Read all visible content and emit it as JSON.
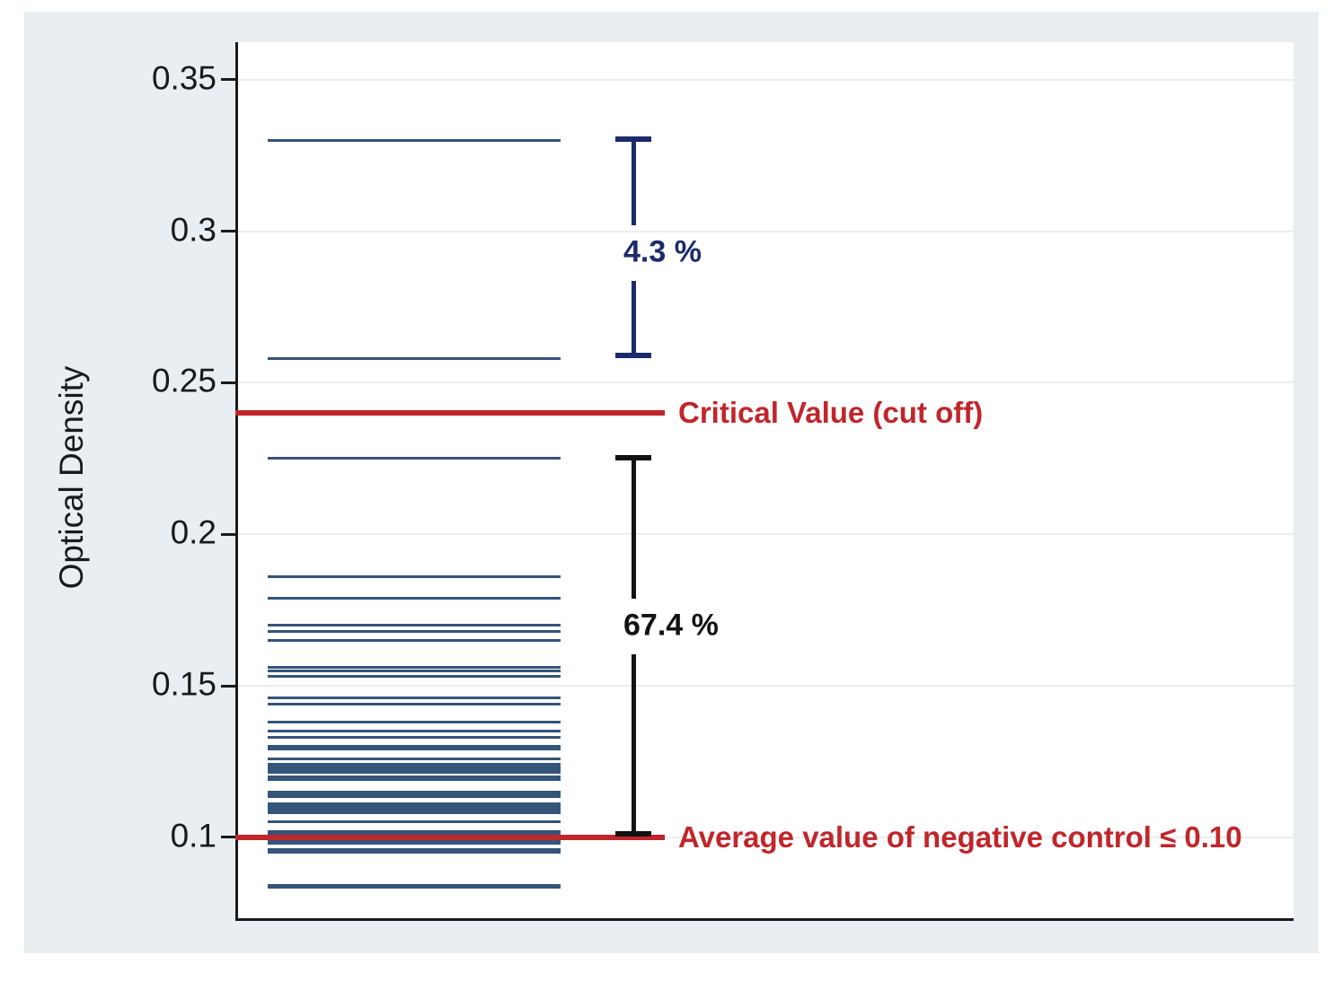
{
  "chart_data": {
    "type": "strip",
    "orientation": "horizontal-line-markers",
    "title": "",
    "xlabel": "",
    "ylabel": "Optical Density",
    "ylim": [
      0.0733,
      0.3624
    ],
    "grid": true,
    "yticks": [
      {
        "v": 0.35,
        "label": "0.35"
      },
      {
        "v": 0.3,
        "label": "0.3"
      },
      {
        "v": 0.25,
        "label": "0.25"
      },
      {
        "v": 0.2,
        "label": "0.2"
      },
      {
        "v": 0.15,
        "label": "0.15"
      },
      {
        "v": 0.1,
        "label": "0.1"
      }
    ],
    "values": [
      0.33,
      0.258,
      0.225,
      0.186,
      0.179,
      0.17,
      0.168,
      0.165,
      0.156,
      0.155,
      0.153,
      0.146,
      0.144,
      0.138,
      0.135,
      0.133,
      0.13,
      0.129,
      0.126,
      0.124,
      0.1235,
      0.123,
      0.122,
      0.1215,
      0.12,
      0.119,
      0.115,
      0.114,
      0.1135,
      0.111,
      0.1105,
      0.11,
      0.1095,
      0.109,
      0.108,
      0.105,
      0.102,
      0.101,
      0.099,
      0.0985,
      0.098,
      0.096,
      0.0955,
      0.095,
      0.084,
      0.0835
    ],
    "reference_lines": [
      {
        "v": 0.24,
        "label": "Critical Value (cut off)"
      },
      {
        "v": 0.1,
        "label": "Average value of negative control ≤ 0.10"
      }
    ],
    "annotations": [
      {
        "label": "4.3 %",
        "from": 0.259,
        "to": 0.3305,
        "label_at": 0.293,
        "color_key": "navy"
      },
      {
        "label": "67.4 %",
        "from": 0.1012,
        "to": 0.2253,
        "label_at": 0.17,
        "color_key": "black"
      }
    ]
  },
  "colors": {
    "background": "#e8eef2",
    "plot_background": "#ffffff",
    "grid": "#ededed",
    "axis": "#1a1a1a",
    "data_line": "#35547a",
    "reference": "#c0262b",
    "navy": "#1c2a6b",
    "black": "#121212"
  }
}
